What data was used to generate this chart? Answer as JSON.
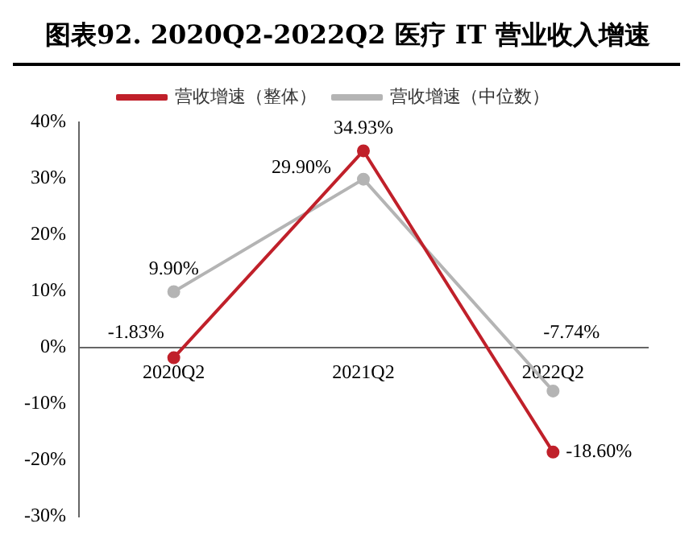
{
  "chart_data": {
    "type": "line",
    "title": "图表92.  2020Q2-2022Q2 医疗 IT 营业收入增速",
    "categories": [
      "2020Q2",
      "2021Q2",
      "2022Q2"
    ],
    "series": [
      {
        "name": "营收增速（整体）",
        "color": "#c0202a",
        "values": [
          -1.83,
          34.93,
          -18.6
        ],
        "value_labels": [
          "-1.83%",
          "34.93%",
          "-18.60%"
        ]
      },
      {
        "name": "营收增速（中位数）",
        "color": "#b4b4b4",
        "values": [
          9.9,
          29.9,
          -7.74
        ],
        "value_labels": [
          "9.90%",
          "29.90%",
          "-7.74%"
        ]
      }
    ],
    "ylim": [
      -30,
      40
    ],
    "yticks": [
      {
        "value": -30,
        "label": "-30%"
      },
      {
        "value": -20,
        "label": "-20%"
      },
      {
        "value": -10,
        "label": "-10%"
      },
      {
        "value": 0,
        "label": "0%"
      },
      {
        "value": 10,
        "label": "10%"
      },
      {
        "value": 20,
        "label": "20%"
      },
      {
        "value": 30,
        "label": "30%"
      },
      {
        "value": 40,
        "label": "40%"
      }
    ],
    "grid": false,
    "legend": "top",
    "marker": "circle",
    "line_style": "solid"
  }
}
